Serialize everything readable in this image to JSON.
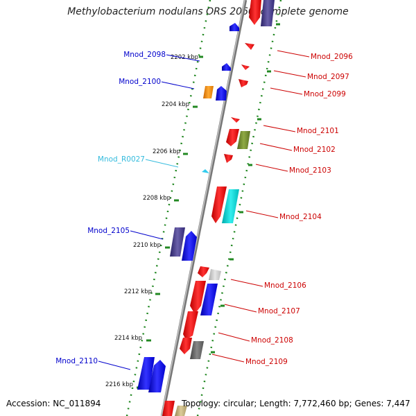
{
  "title": "Methylobacterium nodulans ORS 2060, complete genome",
  "footer": {
    "accession": "Accession: NC_011894",
    "topology": "Topology: circular; Length: 7,772,460 bp; Genes: 7,447"
  },
  "colors": {
    "forward_label": "#0000cc",
    "reverse_label": "#cc0000",
    "rna_label": "#33bbdd",
    "tick": "#228822"
  },
  "axis_ticks": [
    "2202 kbp",
    "2204 kbp",
    "2206 kbp",
    "2208 kbp",
    "2210 kbp",
    "2212 kbp",
    "2214 kbp",
    "2216 kbp"
  ],
  "forward_labels": [
    "Mnod_2098",
    "Mnod_2100",
    "Mnod_R0027",
    "Mnod_2105",
    "Mnod_2110"
  ],
  "reverse_labels": [
    "Mnod_2096",
    "Mnod_2097",
    "Mnod_2099",
    "Mnod_2101",
    "Mnod_2102",
    "Mnod_2103",
    "Mnod_2104",
    "Mnod_2106",
    "Mnod_2107",
    "Mnod_2108",
    "Mnod_2109"
  ]
}
